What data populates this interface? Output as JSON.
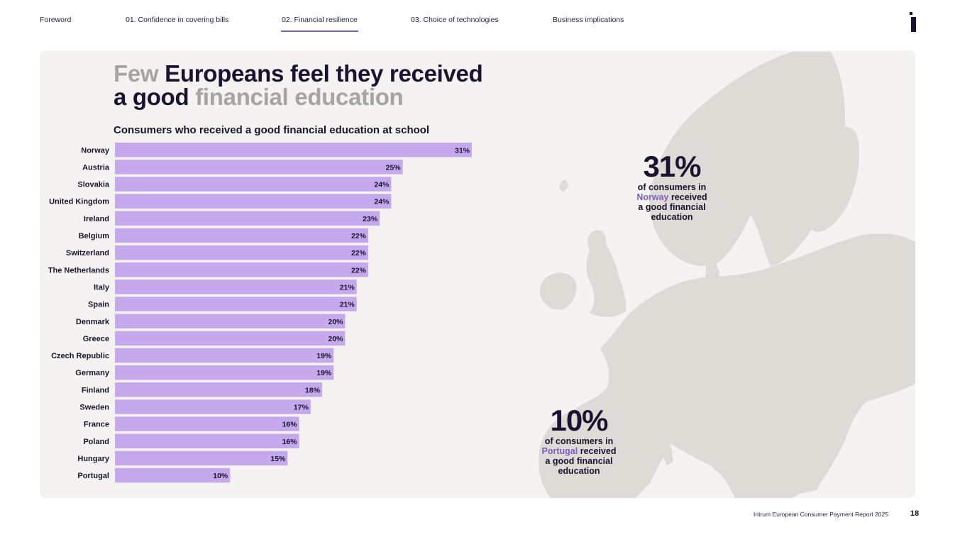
{
  "nav": {
    "items": [
      {
        "label": "Foreword"
      },
      {
        "label": "01. Confidence in covering bills"
      },
      {
        "label": "02. Financial resilience"
      },
      {
        "label": "03. Choice of technologies"
      },
      {
        "label": "Business implications"
      }
    ],
    "active": "02. Financial resilience"
  },
  "title": {
    "part1": "Few",
    "part2": "Europeans feel they received",
    "part3": "a good",
    "part4": "financial education"
  },
  "callouts": {
    "norway": {
      "value": "31%",
      "line1": "of consumers in",
      "country": "Norway",
      "line2": "received",
      "line3": "a good financial",
      "line4": "education"
    },
    "portugal": {
      "value": "10%",
      "line1": "of consumers in",
      "country": "Portugal",
      "line2": "received",
      "line3": "a good financial",
      "line4": "education"
    }
  },
  "footer": {
    "report": "Intrum European Consumer Payment Report 2025",
    "page": "18"
  },
  "colors": {
    "bar": "#c5a9ec",
    "accent": "#7b5fc2",
    "text": "#1a1230",
    "muted": "#a6a3a0",
    "panel": "#f4f3f1",
    "land": "#dedbd6"
  },
  "chart_data": {
    "type": "bar",
    "orientation": "horizontal",
    "title": "Consumers who received a good financial education at school",
    "categories": [
      "Norway",
      "Austria",
      "Slovakia",
      "United Kingdom",
      "Ireland",
      "Belgium",
      "Switzerland",
      "The Netherlands",
      "Italy",
      "Spain",
      "Denmark",
      "Greece",
      "Czech Republic",
      "Germany",
      "Finland",
      "Sweden",
      "France",
      "Poland",
      "Hungary",
      "Portugal"
    ],
    "values": [
      31,
      25,
      24,
      24,
      23,
      22,
      22,
      22,
      21,
      21,
      20,
      20,
      19,
      19,
      18,
      17,
      16,
      16,
      15,
      10
    ],
    "labels": [
      "31%",
      "25%",
      "24%",
      "24%",
      "23%",
      "22%",
      "22%",
      "22%",
      "21%",
      "21%",
      "20%",
      "20%",
      "19%",
      "19%",
      "18%",
      "17%",
      "16%",
      "16%",
      "15%",
      "10%"
    ],
    "xlim": [
      0,
      31
    ],
    "unit": "%"
  }
}
